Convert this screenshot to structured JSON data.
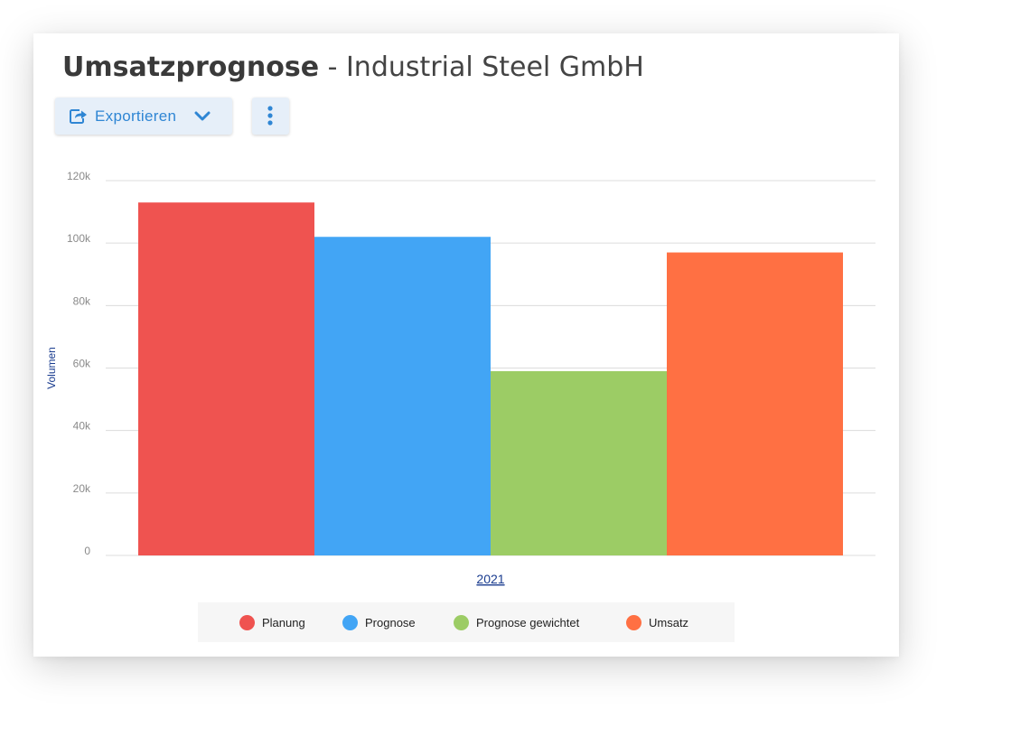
{
  "header": {
    "title_strong": "Umsatzprognose",
    "title_rest": " - Industrial Steel GmbH"
  },
  "toolbar": {
    "export_label": "Exportieren",
    "export_icon": "export-icon",
    "dropdown_icon": "chevron-down-icon",
    "more_icon": "more-vertical-icon"
  },
  "colors": {
    "accent": "#2f86d4",
    "Planung": "#ef5350",
    "Prognose": "#42a5f5",
    "Prognose gewichtet": "#9ccc65",
    "Umsatz": "#ff7043"
  },
  "chart_data": {
    "type": "bar",
    "categories": [
      "2021"
    ],
    "series": [
      {
        "name": "Planung",
        "values": [
          113000
        ],
        "color": "#ef5350"
      },
      {
        "name": "Prognose",
        "values": [
          102000
        ],
        "color": "#42a5f5"
      },
      {
        "name": "Prognose gewichtet",
        "values": [
          59000
        ],
        "color": "#9ccc65"
      },
      {
        "name": "Umsatz",
        "values": [
          97000
        ],
        "color": "#ff7043"
      }
    ],
    "ylabel": "Volumen",
    "xlabel": "",
    "ylim": [
      0,
      120000
    ],
    "yticks": [
      0,
      20000,
      40000,
      60000,
      80000,
      100000,
      120000
    ],
    "ytick_labels": [
      "0",
      "20k",
      "40k",
      "60k",
      "80k",
      "100k",
      "120k"
    ],
    "grid": true,
    "legend_position": "bottom"
  }
}
